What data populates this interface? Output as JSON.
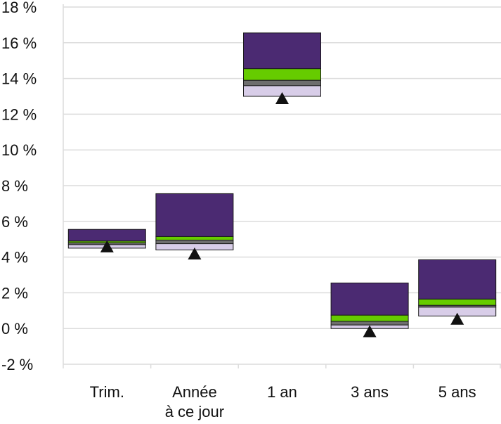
{
  "chart_data": {
    "type": "floating-bar",
    "title": "",
    "xlabel": "",
    "ylabel": "",
    "ylim": [
      -2,
      18
    ],
    "y_ticks": [
      "18 %",
      "16 %",
      "14 %",
      "12 %",
      "10 %",
      "8 %",
      "6 %",
      "4 %",
      "2 %",
      "0 %",
      "-2 %"
    ],
    "y_tick_values": [
      18,
      16,
      14,
      12,
      10,
      8,
      6,
      4,
      2,
      0,
      -2
    ],
    "grid": true,
    "categories": [
      {
        "line1": "Trim.",
        "line2": ""
      },
      {
        "line1": "Année",
        "line2": "à ce jour"
      },
      {
        "line1": "1 an",
        "line2": ""
      },
      {
        "line1": "3 ans",
        "line2": ""
      },
      {
        "line1": "5 ans",
        "line2": ""
      }
    ],
    "bands": [
      {
        "role": "quartile-4",
        "color": "#d8cde8"
      },
      {
        "role": "quartile-3",
        "color": "#6e6e6e"
      },
      {
        "role": "quartile-2",
        "color": "#66cc00"
      },
      {
        "role": "quartile-1",
        "color": "#4b2a72"
      }
    ],
    "breakpoints": [
      [
        4.5,
        4.7,
        4.8,
        4.9,
        5.55
      ],
      [
        4.4,
        4.75,
        4.95,
        5.15,
        7.55
      ],
      [
        13.0,
        13.6,
        13.9,
        14.55,
        16.55
      ],
      [
        0.0,
        0.2,
        0.4,
        0.75,
        2.55
      ],
      [
        0.7,
        1.2,
        1.3,
        1.65,
        3.85
      ]
    ],
    "marker_values": [
      4.6,
      4.2,
      12.9,
      -0.15,
      0.55
    ],
    "marker_color": "#111111"
  }
}
